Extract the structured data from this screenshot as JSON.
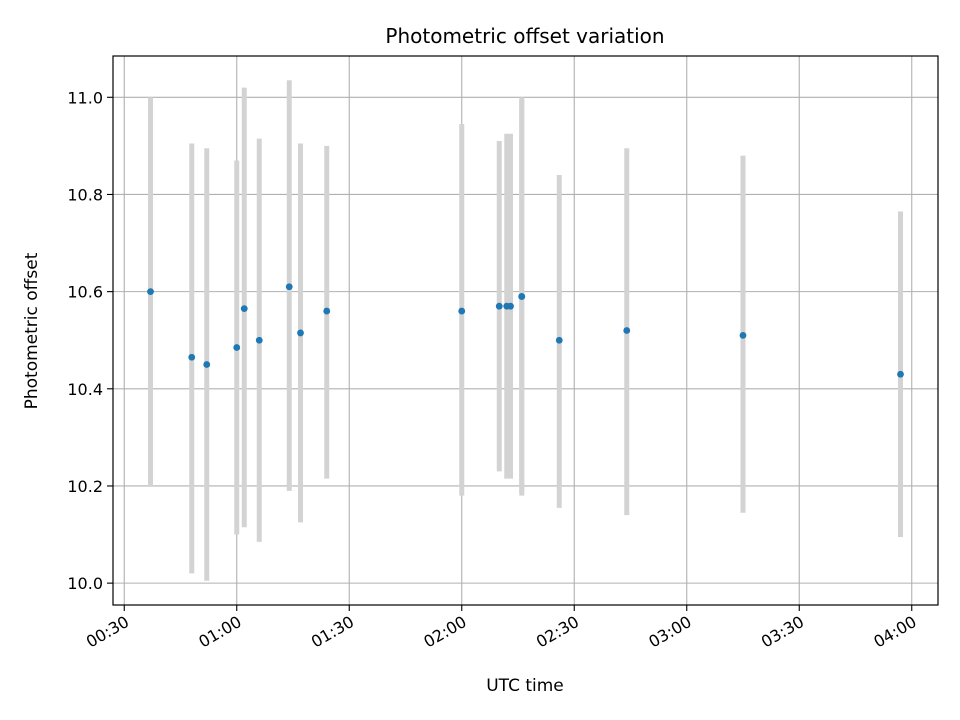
{
  "chart_data": {
    "type": "scatter",
    "title": "Photometric offset variation",
    "xlabel": "UTC time",
    "ylabel": "Photometric offset",
    "grid": true,
    "x_ticks": [
      "00:30",
      "01:00",
      "01:30",
      "02:00",
      "02:30",
      "03:00",
      "03:30",
      "04:00"
    ],
    "y_ticks": [
      "10.0",
      "10.2",
      "10.4",
      "10.6",
      "10.8",
      "11.0"
    ],
    "xlim": [
      "00:27",
      "04:07"
    ],
    "ylim": [
      9.955,
      11.085
    ],
    "colors": {
      "point": "#1f77b4",
      "errorbar": "#d3d3d3",
      "grid": "#b0b0b0"
    },
    "points": [
      {
        "x": "00:37",
        "y": 10.6,
        "lo": 10.2,
        "hi": 11.0
      },
      {
        "x": "00:48",
        "y": 10.465,
        "lo": 10.02,
        "hi": 10.905
      },
      {
        "x": "00:52",
        "y": 10.45,
        "lo": 10.005,
        "hi": 10.895
      },
      {
        "x": "01:00",
        "y": 10.485,
        "lo": 10.1,
        "hi": 10.87
      },
      {
        "x": "01:02",
        "y": 10.565,
        "lo": 10.115,
        "hi": 11.02
      },
      {
        "x": "01:06",
        "y": 10.5,
        "lo": 10.085,
        "hi": 10.915
      },
      {
        "x": "01:14",
        "y": 10.61,
        "lo": 10.19,
        "hi": 11.035
      },
      {
        "x": "01:17",
        "y": 10.515,
        "lo": 10.125,
        "hi": 10.905
      },
      {
        "x": "01:24",
        "y": 10.56,
        "lo": 10.215,
        "hi": 10.9
      },
      {
        "x": "02:00",
        "y": 10.56,
        "lo": 10.18,
        "hi": 10.945
      },
      {
        "x": "02:10",
        "y": 10.57,
        "lo": 10.23,
        "hi": 10.91
      },
      {
        "x": "02:12",
        "y": 10.57,
        "lo": 10.215,
        "hi": 10.925
      },
      {
        "x": "02:13",
        "y": 10.57,
        "lo": 10.215,
        "hi": 10.925
      },
      {
        "x": "02:16",
        "y": 10.59,
        "lo": 10.18,
        "hi": 11.0
      },
      {
        "x": "02:16",
        "y": 10.59,
        "lo": 10.185,
        "hi": 10.995
      },
      {
        "x": "02:26",
        "y": 10.5,
        "lo": 10.155,
        "hi": 10.84
      },
      {
        "x": "02:44",
        "y": 10.52,
        "lo": 10.14,
        "hi": 10.895
      },
      {
        "x": "03:15",
        "y": 10.51,
        "lo": 10.145,
        "hi": 10.88
      },
      {
        "x": "03:57",
        "y": 10.43,
        "lo": 10.095,
        "hi": 10.765
      }
    ]
  }
}
